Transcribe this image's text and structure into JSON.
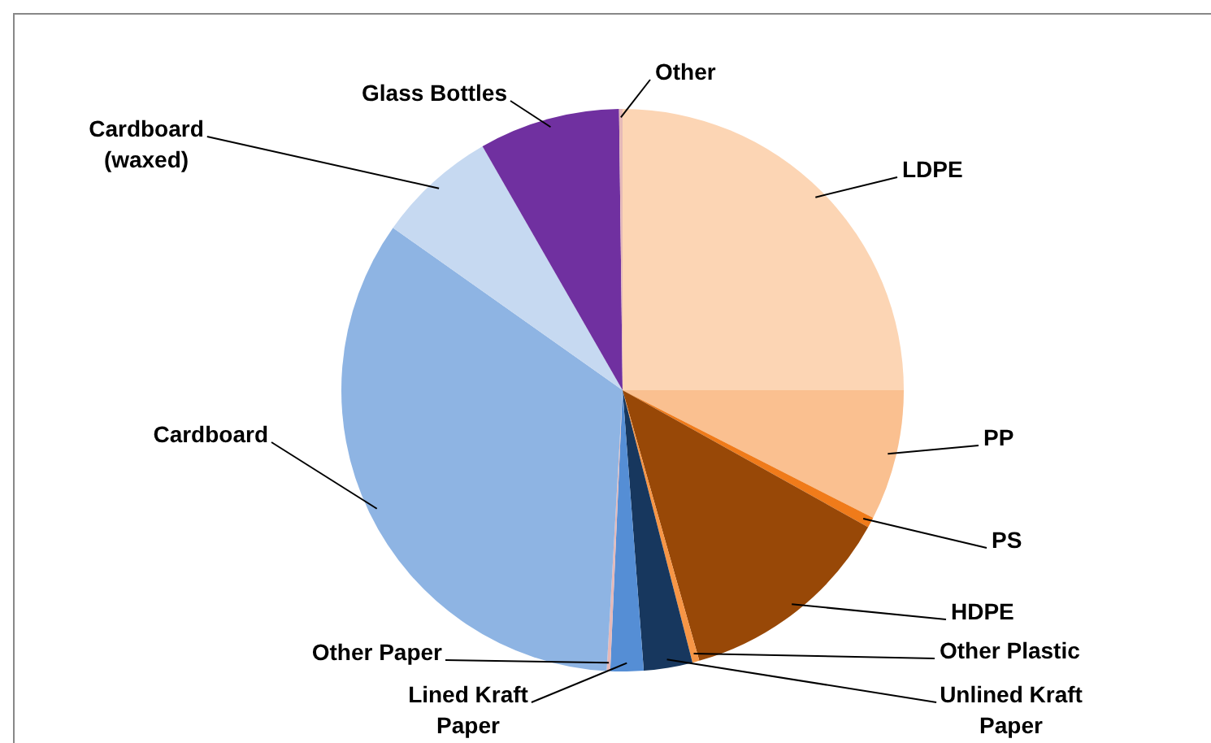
{
  "chart_data": {
    "type": "pie",
    "categories": [
      "LDPE",
      "PP",
      "PS",
      "HDPE",
      "Other Plastic",
      "Unlined Kraft Paper",
      "Lined Kraft Paper",
      "Other Paper",
      "Cardboard",
      "Cardboard (waxed)",
      "Glass Bottles",
      "Other"
    ],
    "values": [
      25,
      7.5,
      0.6,
      12.5,
      0.4,
      2.8,
      1.9,
      0.2,
      33.9,
      6.9,
      8.1,
      0.2
    ],
    "colors": [
      "#fcd5b4",
      "#fac090",
      "#f07b1a",
      "#984807",
      "#f79646",
      "#17375e",
      "#558ed5",
      "#e6b9b8",
      "#8eb4e3",
      "#c6d9f1",
      "#7030a0",
      "#e6b9b8"
    ]
  }
}
